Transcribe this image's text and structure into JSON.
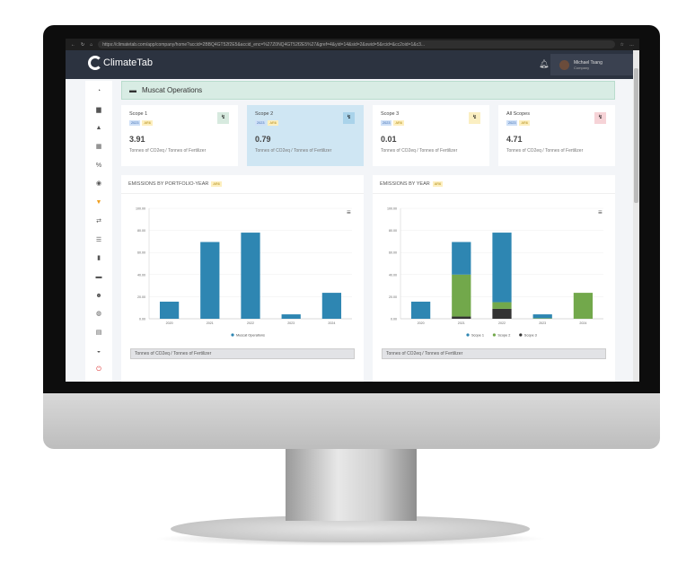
{
  "browser": {
    "url": "https://climatetab.com/app/company/home?accid=2BBQ4GT52f2E5&accid_enc=%27Z0NQ4GT52f2E5%27&gref=4&yid=14&sid=2&swid=5&rcid=&cc2oid=1&c3..."
  },
  "app": {
    "logo_text": "ClimateTab",
    "user_name": "Michael Tsang",
    "user_role": "Company"
  },
  "sidebar": {
    "icons": [
      "dashboard-icon",
      "car-icon",
      "bell-icon",
      "calculator-icon",
      "percent-icon",
      "clock-icon",
      "filter-icon",
      "exchange-icon",
      "list-icon",
      "trash-icon",
      "folder-icon",
      "users-icon",
      "user-circle-icon",
      "document-icon",
      "gauge-icon",
      "power-icon"
    ]
  },
  "banner": {
    "title": "Muscat Operations"
  },
  "cards": [
    {
      "title": "Scope 1",
      "year": "2023",
      "tag": "AR6",
      "value": "3.91",
      "unit": "Tonnes of CO2eq / Tonnes of Fertilizer",
      "icon_color": "#d7eadf"
    },
    {
      "title": "Scope 2",
      "year": "2023",
      "tag": "AR6",
      "value": "0.79",
      "unit": "Tonnes of CO2eq / Tonnes of Fertilizer",
      "icon_color": "#a9d3ea"
    },
    {
      "title": "Scope 3",
      "year": "2023",
      "tag": "AR6",
      "value": "0.01",
      "unit": "Tonnes of CO2eq / Tonnes of Fertilizer",
      "icon_color": "#fbefc2"
    },
    {
      "title": "All Scopes",
      "year": "2023",
      "tag": "AR6",
      "value": "4.71",
      "unit": "Tonnes of CO2eq / Tonnes of Fertilizer",
      "icon_color": "#f6d3d7"
    }
  ],
  "chart_data": [
    {
      "type": "bar",
      "title": "EMISSIONS BY PORTFOLIO-YEAR",
      "tag": "AR6",
      "categories": [
        "2020",
        "2021",
        "2022",
        "2023",
        "2024"
      ],
      "series": [
        {
          "name": "Muscat Operations",
          "color": "#2e86b2",
          "values": [
            15.5,
            69.5,
            78,
            4,
            23.5
          ]
        }
      ],
      "ylim": [
        0,
        100
      ],
      "yticks": [
        "0.00",
        "20.00",
        "40.00",
        "60.00",
        "80.00",
        "100.00"
      ],
      "legend": "bottom",
      "footer": "Tonnes of CO2eq / Tonnes of Fertilizer"
    },
    {
      "type": "bar",
      "stacked": true,
      "title": "EMISSIONS BY YEAR",
      "tag": "AR6",
      "categories": [
        "2020",
        "2021",
        "2022",
        "2023",
        "2024"
      ],
      "series": [
        {
          "name": "Scope 3",
          "color": "#333333",
          "values": [
            0,
            2,
            9,
            0,
            0
          ]
        },
        {
          "name": "Scope 2",
          "color": "#72a84b",
          "values": [
            0,
            38,
            6,
            0.5,
            23.5
          ]
        },
        {
          "name": "Scope 1",
          "color": "#2e86b2",
          "values": [
            15.5,
            29.5,
            63,
            3.5,
            0
          ]
        }
      ],
      "legend_order": [
        "Scope 1",
        "Scope 2",
        "Scope 3"
      ],
      "ylim": [
        0,
        100
      ],
      "yticks": [
        "0.00",
        "20.00",
        "40.00",
        "60.00",
        "80.00",
        "100.00"
      ],
      "legend": "bottom",
      "footer": "Tonnes of CO2eq / Tonnes of Fertilizer"
    }
  ]
}
